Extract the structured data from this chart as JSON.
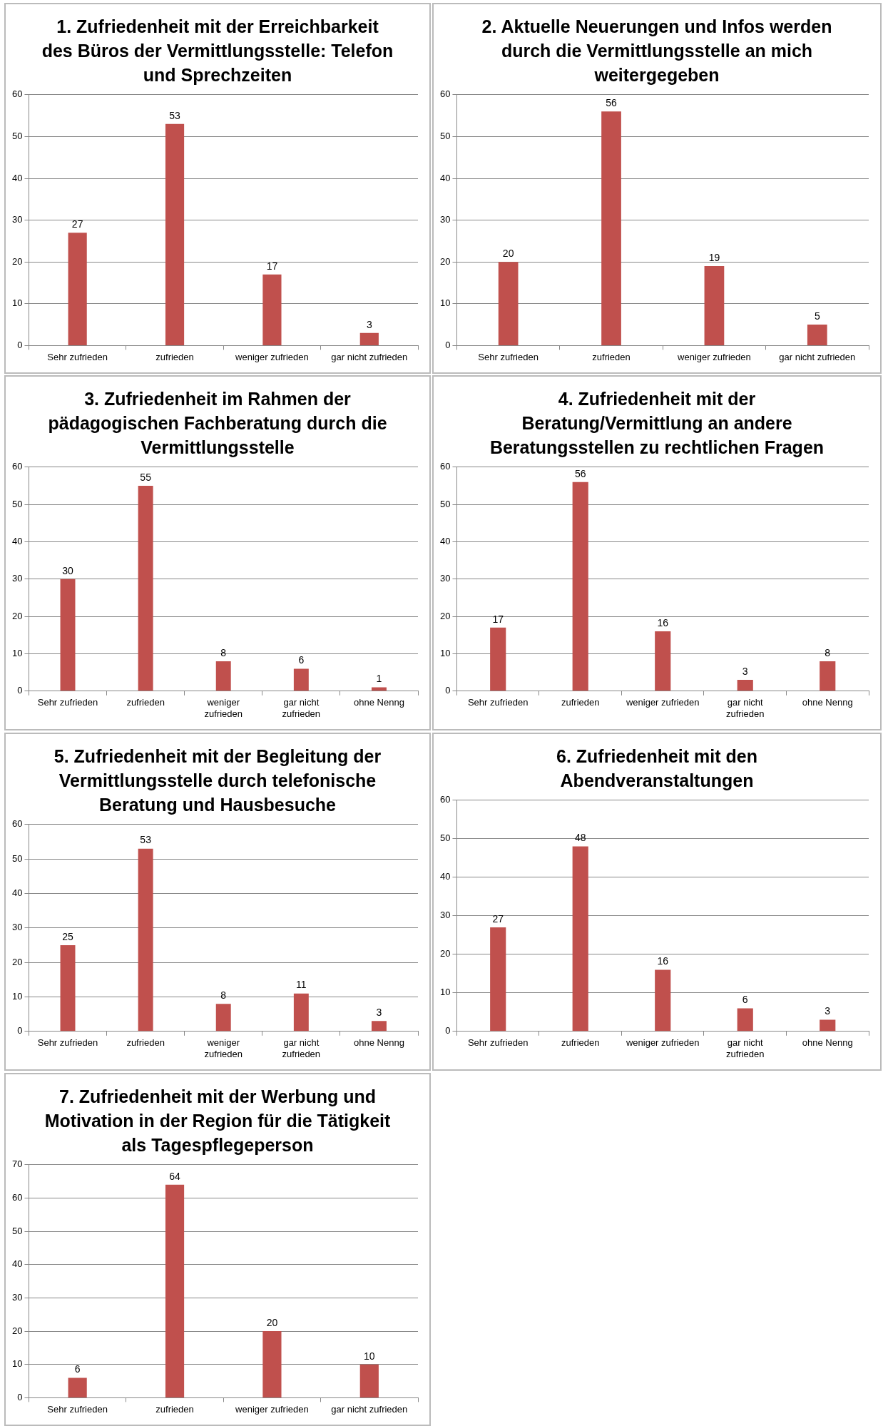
{
  "chart_data": [
    {
      "type": "bar",
      "title": "1. Zufriedenheit mit der Erreichbarkeit des Büros der Vermittlungsstelle: Telefon und Sprechzeiten",
      "categories": [
        "Sehr zufrieden",
        "zufrieden",
        "weniger zufrieden",
        "gar nicht zufrieden"
      ],
      "values": [
        27,
        53,
        17,
        3
      ],
      "color": "#c0504d",
      "ylim": [
        0,
        60
      ],
      "yticks": [
        0,
        10,
        20,
        30,
        40,
        50,
        60
      ],
      "grid": "y",
      "data_labels": true
    },
    {
      "type": "bar",
      "title": "2. Aktuelle Neuerungen und Infos werden durch die Vermittlungsstelle an mich weitergegeben",
      "categories": [
        "Sehr zufrieden",
        "zufrieden",
        "weniger zufrieden",
        "gar nicht zufrieden"
      ],
      "values": [
        20,
        56,
        19,
        5
      ],
      "color": "#c0504d",
      "ylim": [
        0,
        60
      ],
      "yticks": [
        0,
        10,
        20,
        30,
        40,
        50,
        60
      ],
      "grid": "y",
      "data_labels": true
    },
    {
      "type": "bar",
      "title": "3. Zufriedenheit im Rahmen der pädagogischen Fachberatung durch die Vermittlungsstelle",
      "categories": [
        "Sehr zufrieden",
        "zufrieden",
        "weniger zufrieden",
        "gar nicht zufrieden",
        "ohne Nenng"
      ],
      "values": [
        30,
        55,
        8,
        6,
        1
      ],
      "color": "#c0504d",
      "ylim": [
        0,
        60
      ],
      "yticks": [
        0,
        10,
        20,
        30,
        40,
        50,
        60
      ],
      "grid": "y",
      "data_labels": true
    },
    {
      "type": "bar",
      "title": "4. Zufriedenheit mit der Beratung/Vermittlung an andere Beratungsstellen zu rechtlichen Fragen",
      "categories": [
        "Sehr zufrieden",
        "zufrieden",
        "weniger zufrieden",
        "gar nicht zufrieden",
        "ohne Nenng"
      ],
      "values": [
        17,
        56,
        16,
        3,
        8
      ],
      "color": "#c0504d",
      "ylim": [
        0,
        60
      ],
      "yticks": [
        0,
        10,
        20,
        30,
        40,
        50,
        60
      ],
      "grid": "y",
      "data_labels": true
    },
    {
      "type": "bar",
      "title": "5. Zufriedenheit mit der Begleitung der Vermittlungsstelle durch telefonische Beratung und Hausbesuche",
      "categories": [
        "Sehr zufrieden",
        "zufrieden",
        "weniger zufrieden",
        "gar nicht zufrieden",
        "ohne Nenng"
      ],
      "values": [
        25,
        53,
        8,
        11,
        3
      ],
      "color": "#c0504d",
      "ylim": [
        0,
        60
      ],
      "yticks": [
        0,
        10,
        20,
        30,
        40,
        50,
        60
      ],
      "grid": "y",
      "data_labels": true
    },
    {
      "type": "bar",
      "title": "6. Zufriedenheit mit den Abendveranstaltungen",
      "categories": [
        "Sehr zufrieden",
        "zufrieden",
        "weniger zufrieden",
        "gar nicht zufrieden",
        "ohne Nenng"
      ],
      "values": [
        27,
        48,
        16,
        6,
        3
      ],
      "color": "#c0504d",
      "ylim": [
        0,
        60
      ],
      "yticks": [
        0,
        10,
        20,
        30,
        40,
        50,
        60
      ],
      "grid": "y",
      "data_labels": true
    },
    {
      "type": "bar",
      "title": "7. Zufriedenheit mit der Werbung und Motivation in der Region für die Tätigkeit als Tagespflegeperson",
      "categories": [
        "Sehr zufrieden",
        "zufrieden",
        "weniger zufrieden",
        "gar nicht zufrieden"
      ],
      "values": [
        6,
        64,
        20,
        10
      ],
      "color": "#c0504d",
      "ylim": [
        0,
        70
      ],
      "yticks": [
        0,
        10,
        20,
        30,
        40,
        50,
        60,
        70
      ],
      "grid": "y",
      "data_labels": true
    }
  ]
}
